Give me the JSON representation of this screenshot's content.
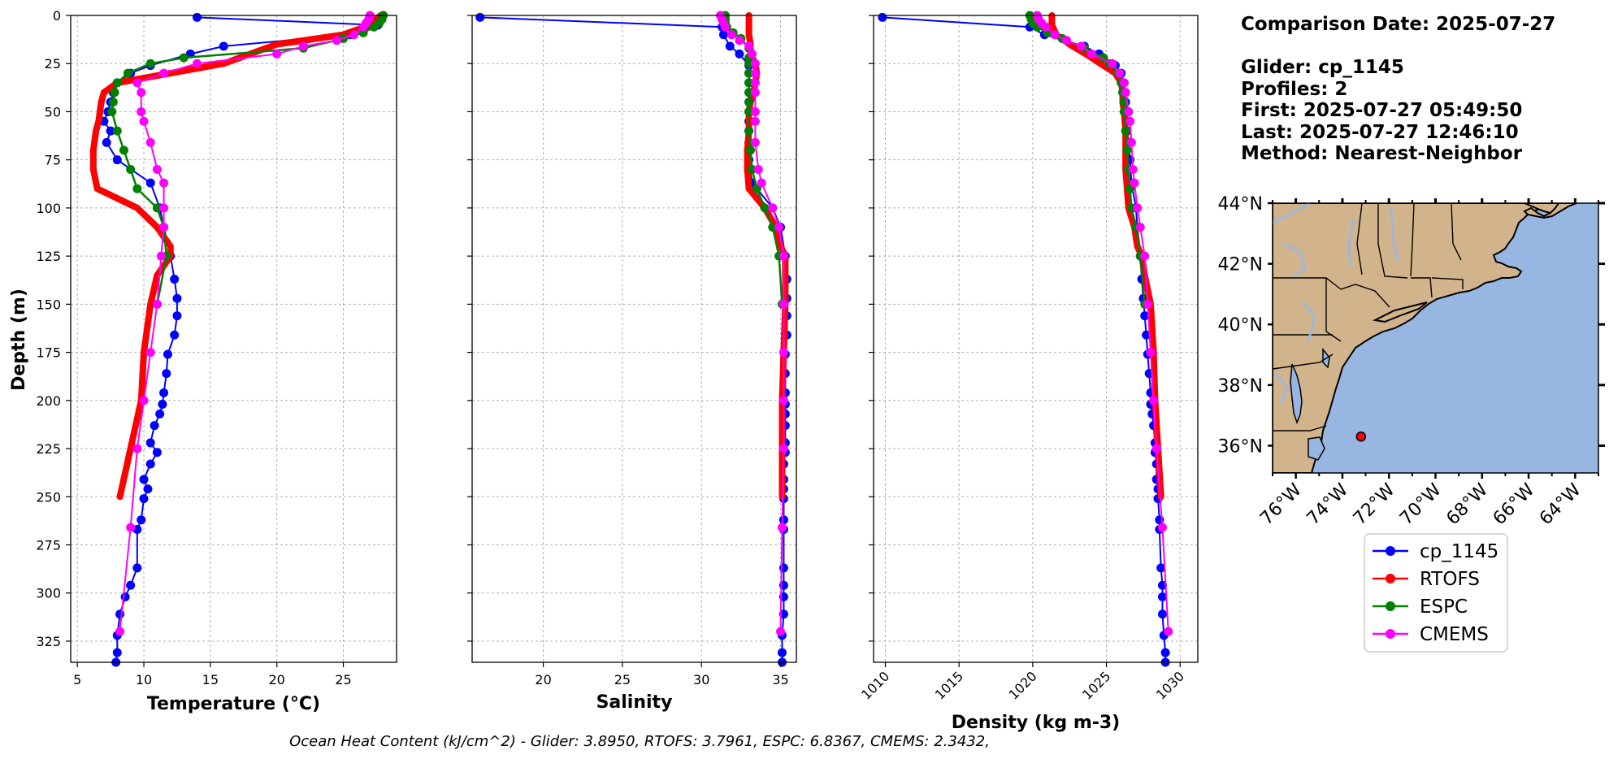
{
  "info": {
    "comparison_date": "Comparison Date: 2025-07-27",
    "glider": "Glider: cp_1145",
    "profiles": "Profiles: 2",
    "first": "First: 2025-07-27 05:49:50",
    "last": "Last: 2025-07-27 12:46:10",
    "method": "Method: Nearest-Neighbor"
  },
  "footer": "Ocean Heat Content (kJ/cm^2) - Glider: 3.8950,  RTOFS: 3.7961,  ESPC: 6.8367,  CMEMS: 2.3432,",
  "colors": {
    "glider": "#0000ff",
    "glider_light": "#00e5ff",
    "rtofs": "#ff0000",
    "espc": "#008000",
    "cmems": "#ff00ff",
    "land": "#d2b48c",
    "ocean": "#97b6e1",
    "river": "#9fb7dc"
  },
  "legend": [
    "cp_1145",
    "RTOFS",
    "ESPC",
    "CMEMS"
  ],
  "map": {
    "lat_ticks": [
      "44°N",
      "42°N",
      "40°N",
      "38°N",
      "36°N"
    ],
    "lon_ticks": [
      "76°W",
      "74°W",
      "72°W",
      "70°W",
      "68°W",
      "66°W",
      "64°W"
    ],
    "marker": {
      "lon": -73.2,
      "lat": 36.3
    }
  },
  "chart_data": [
    {
      "type": "line",
      "xlabel": "Temperature (°C)",
      "ylabel": "Depth (m)",
      "xlim": [
        4.5,
        29
      ],
      "ylim": [
        336,
        0
      ],
      "xticks": [
        5,
        10,
        15,
        20,
        25
      ],
      "yticks": [
        0,
        25,
        50,
        75,
        100,
        125,
        150,
        175,
        200,
        225,
        250,
        275,
        300,
        325
      ],
      "grid": true,
      "series": [
        {
          "name": "cp_1145",
          "depth": [
            1,
            5,
            10,
            16,
            20,
            26,
            30,
            35,
            40,
            45,
            50,
            55,
            60,
            66,
            75,
            87,
            100,
            110,
            125,
            137,
            147,
            156,
            166,
            176,
            186,
            196,
            202,
            207,
            213,
            222,
            227,
            233,
            241,
            246,
            251,
            262,
            267,
            287,
            296,
            302,
            311,
            322,
            331,
            336
          ],
          "values": [
            14.0,
            27.6,
            25.5,
            16.0,
            13.5,
            10.5,
            9.0,
            8.0,
            7.7,
            7.5,
            7.3,
            7.0,
            7.5,
            7.2,
            8.0,
            10.5,
            11.2,
            11.5,
            12.0,
            12.3,
            12.5,
            12.5,
            12.3,
            11.8,
            11.7,
            11.5,
            11.4,
            11.2,
            10.8,
            10.5,
            11.0,
            10.5,
            10.0,
            10.3,
            10.0,
            9.8,
            9.5,
            9.5,
            9.0,
            8.6,
            8.2,
            8.0,
            8.0,
            7.9
          ]
        },
        {
          "name": "RTOFS",
          "depth": [
            0,
            5,
            10,
            15,
            20,
            25,
            30,
            35,
            40,
            45,
            50,
            55,
            60,
            70,
            80,
            90,
            100,
            110,
            120,
            125,
            135,
            150,
            175,
            200,
            225,
            250
          ],
          "values": [
            27.8,
            27.0,
            25.0,
            20.0,
            18.0,
            16.0,
            12.0,
            8.0,
            7.0,
            6.8,
            6.7,
            6.6,
            6.4,
            6.2,
            6.2,
            6.5,
            9.5,
            11.0,
            12.0,
            12.0,
            11.0,
            10.5,
            10.0,
            9.8,
            9.0,
            8.2
          ]
        },
        {
          "name": "ESPC",
          "depth": [
            0,
            2,
            4,
            6,
            9,
            12,
            17,
            22,
            25,
            30,
            35,
            40,
            45,
            50,
            60,
            70,
            80,
            90,
            100,
            110,
            125,
            150
          ],
          "values": [
            28.0,
            27.9,
            27.7,
            27.3,
            26.5,
            25.0,
            22.0,
            13.0,
            10.5,
            8.8,
            8.0,
            7.8,
            7.7,
            7.6,
            8.0,
            8.5,
            9.0,
            9.5,
            11.0,
            11.5,
            11.7,
            11.0
          ]
        },
        {
          "name": "CMEMS",
          "depth": [
            0,
            2,
            4,
            6,
            10,
            13,
            16,
            20,
            25,
            30,
            35,
            40,
            50,
            55,
            66,
            80,
            87,
            100,
            110,
            125,
            150,
            175,
            200,
            225,
            266,
            320
          ],
          "values": [
            27.0,
            26.9,
            26.7,
            26.5,
            25.8,
            24.5,
            22.0,
            20.0,
            14.0,
            11.5,
            9.5,
            9.8,
            9.8,
            10.0,
            10.5,
            11.0,
            11.5,
            11.5,
            11.5,
            11.3,
            11.0,
            10.5,
            10.0,
            9.5,
            9.0,
            8.2
          ]
        }
      ]
    },
    {
      "type": "line",
      "xlabel": "Salinity",
      "xlim": [
        15.5,
        36
      ],
      "ylim": [
        336,
        0
      ],
      "xticks": [
        20,
        25,
        30,
        35
      ],
      "grid": true,
      "series": [
        {
          "name": "cp_1145",
          "depth": [
            1,
            6,
            10,
            16,
            20,
            26,
            30,
            35,
            40,
            45,
            50,
            55,
            60,
            66,
            75,
            87,
            100,
            110,
            125,
            137,
            147,
            156,
            166,
            176,
            186,
            196,
            202,
            207,
            213,
            222,
            227,
            233,
            241,
            246,
            251,
            262,
            267,
            287,
            296,
            302,
            311,
            322,
            331,
            336
          ],
          "values": [
            16.0,
            31.3,
            31.4,
            31.8,
            32.4,
            33.0,
            33.0,
            33.0,
            33.0,
            33.0,
            33.0,
            33.0,
            33.0,
            33.0,
            33.0,
            33.2,
            34.5,
            35.0,
            35.3,
            35.4,
            35.4,
            35.4,
            35.4,
            35.3,
            35.3,
            35.3,
            35.3,
            35.3,
            35.3,
            35.3,
            35.3,
            35.2,
            35.2,
            35.2,
            35.2,
            35.2,
            35.2,
            35.2,
            35.2,
            35.2,
            35.2,
            35.1,
            35.1,
            35.1
          ]
        },
        {
          "name": "RTOFS",
          "depth": [
            0,
            5,
            10,
            15,
            20,
            25,
            30,
            35,
            40,
            45,
            50,
            60,
            70,
            80,
            90,
            100,
            110,
            120,
            125,
            135,
            150,
            175,
            200,
            225,
            250
          ],
          "values": [
            33.0,
            33.0,
            33.0,
            33.1,
            33.1,
            33.4,
            33.5,
            33.4,
            33.3,
            33.1,
            33.0,
            33.0,
            32.9,
            32.9,
            33.0,
            34.0,
            34.7,
            35.0,
            35.3,
            35.3,
            35.3,
            35.2,
            35.1,
            35.1,
            35.1
          ]
        },
        {
          "name": "ESPC",
          "depth": [
            0,
            2,
            4,
            6,
            9,
            12,
            17,
            22,
            25,
            30,
            35,
            40,
            45,
            50,
            60,
            70,
            80,
            90,
            100,
            110,
            125,
            150
          ],
          "values": [
            31.5,
            31.5,
            31.5,
            31.6,
            32.0,
            32.5,
            33.0,
            33.0,
            33.0,
            33.0,
            33.0,
            33.0,
            33.0,
            33.0,
            33.0,
            33.1,
            33.2,
            33.5,
            34.0,
            34.5,
            34.9,
            35.1
          ]
        },
        {
          "name": "CMEMS",
          "depth": [
            0,
            2,
            4,
            6,
            10,
            13,
            16,
            20,
            25,
            30,
            35,
            40,
            50,
            55,
            66,
            80,
            87,
            100,
            110,
            125,
            150,
            175,
            200,
            225,
            266,
            320
          ],
          "values": [
            31.2,
            31.3,
            31.4,
            31.5,
            31.9,
            32.4,
            33.0,
            33.2,
            33.4,
            33.4,
            33.4,
            33.4,
            33.4,
            33.4,
            33.4,
            33.6,
            33.8,
            34.5,
            34.9,
            35.2,
            35.2,
            35.2,
            35.2,
            35.2,
            35.1,
            35.0
          ]
        }
      ]
    },
    {
      "type": "line",
      "xlabel": "Density (kg m-3)",
      "xlim": [
        1009.2,
        1031.2
      ],
      "ylim": [
        336,
        0
      ],
      "xticks": [
        1010,
        1015,
        1020,
        1025,
        1030
      ],
      "grid": true,
      "series": [
        {
          "name": "cp_1145",
          "depth": [
            1,
            6,
            10,
            16,
            20,
            26,
            30,
            35,
            40,
            45,
            50,
            55,
            60,
            66,
            75,
            87,
            100,
            110,
            125,
            137,
            147,
            156,
            166,
            176,
            186,
            196,
            202,
            207,
            213,
            222,
            227,
            233,
            241,
            246,
            251,
            262,
            267,
            287,
            296,
            302,
            311,
            322,
            331,
            336
          ],
          "values": [
            1009.8,
            1019.8,
            1020.8,
            1023.5,
            1024.5,
            1025.6,
            1026.0,
            1026.2,
            1026.3,
            1026.3,
            1026.4,
            1026.4,
            1026.4,
            1026.5,
            1026.6,
            1026.7,
            1027.0,
            1027.1,
            1027.3,
            1027.4,
            1027.5,
            1027.6,
            1027.7,
            1027.8,
            1027.9,
            1028.0,
            1028.0,
            1028.1,
            1028.2,
            1028.3,
            1028.3,
            1028.4,
            1028.4,
            1028.5,
            1028.5,
            1028.6,
            1028.6,
            1028.7,
            1028.8,
            1028.8,
            1028.8,
            1028.9,
            1029.0,
            1029.0
          ]
        },
        {
          "name": "RTOFS",
          "depth": [
            0,
            5,
            10,
            15,
            20,
            25,
            30,
            35,
            40,
            45,
            50,
            60,
            70,
            80,
            90,
            100,
            110,
            120,
            125,
            135,
            150,
            175,
            200,
            225,
            250
          ],
          "values": [
            1021.3,
            1021.3,
            1021.6,
            1022.5,
            1023.6,
            1024.6,
            1025.6,
            1026.0,
            1026.1,
            1026.1,
            1026.2,
            1026.3,
            1026.3,
            1026.3,
            1026.4,
            1026.5,
            1026.9,
            1027.1,
            1027.4,
            1027.6,
            1028.0,
            1028.2,
            1028.3,
            1028.5,
            1028.7
          ]
        },
        {
          "name": "ESPC",
          "depth": [
            0,
            2,
            4,
            6,
            9,
            12,
            17,
            22,
            25,
            30,
            35,
            40,
            45,
            50,
            60,
            70,
            80,
            90,
            100,
            110,
            125,
            150
          ],
          "values": [
            1019.8,
            1019.9,
            1020.0,
            1020.3,
            1021.0,
            1022.0,
            1023.5,
            1024.8,
            1025.2,
            1025.8,
            1026.0,
            1026.1,
            1026.2,
            1026.2,
            1026.3,
            1026.4,
            1026.5,
            1026.6,
            1026.7,
            1027.0,
            1027.3,
            1027.6
          ]
        },
        {
          "name": "CMEMS",
          "depth": [
            0,
            2,
            4,
            6,
            10,
            13,
            16,
            20,
            25,
            30,
            35,
            40,
            50,
            55,
            66,
            80,
            87,
            100,
            110,
            125,
            150,
            175,
            200,
            225,
            266,
            320
          ],
          "values": [
            1020.3,
            1020.4,
            1020.6,
            1020.9,
            1021.5,
            1022.3,
            1023.3,
            1024.0,
            1025.4,
            1025.9,
            1026.2,
            1026.3,
            1026.5,
            1026.6,
            1026.7,
            1026.8,
            1026.9,
            1027.1,
            1027.3,
            1027.6,
            1027.8,
            1028.0,
            1028.2,
            1028.4,
            1028.8,
            1029.2
          ]
        }
      ]
    }
  ]
}
